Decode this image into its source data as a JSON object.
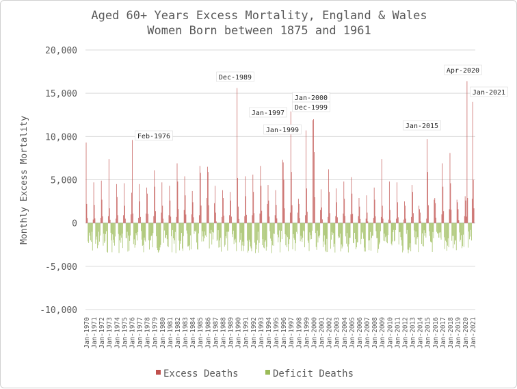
{
  "chart_data": {
    "type": "bar",
    "title": "Aged 60+ Years Excess Mortality, England & Wales",
    "subtitle": "Women Born between 1875 and 1961",
    "ylabel": "Monthly Excess Mortality",
    "xlabel": "",
    "ylim": [
      -10000,
      20000
    ],
    "yticks": [
      -10000,
      -5000,
      0,
      5000,
      10000,
      15000,
      20000
    ],
    "ytick_labels": [
      "-10,000",
      "-5,000",
      "0",
      "5,000",
      "10,000",
      "15,000",
      "20,000"
    ],
    "grid": true,
    "x_start": "Jan-1970",
    "x_end": "Mar-2021",
    "x_tick_labels": [
      "Jan-1970",
      "Jan-1971",
      "Jan-1972",
      "Jan-1973",
      "Jan-1974",
      "Jan-1975",
      "Jan-1976",
      "Jan-1977",
      "Jan-1978",
      "Jan-1979",
      "Jan-1980",
      "Jan-1981",
      "Jan-1982",
      "Jan-1983",
      "Jan-1984",
      "Jan-1985",
      "Jan-1986",
      "Jan-1987",
      "Jan-1988",
      "Jan-1989",
      "Jan-1990",
      "Jan-1991",
      "Jan-1992",
      "Jan-1993",
      "Jan-1994",
      "Jan-1995",
      "Jan-1996",
      "Jan-1997",
      "Jan-1998",
      "Jan-1999",
      "Jan-2000",
      "Jan-2001",
      "Jan-2002",
      "Jan-2003",
      "Jan-2004",
      "Jan-2005",
      "Jan-2006",
      "Jan-2007",
      "Jan-2008",
      "Jan-2009",
      "Jan-2010",
      "Jan-2011",
      "Jan-2012",
      "Jan-2013",
      "Jan-2014",
      "Jan-2015",
      "Jan-2016",
      "Jan-2017",
      "Jan-2018",
      "Jan-2019",
      "Jan-2020",
      "Jan-2021"
    ],
    "legend_position": "bottom",
    "series": [
      {
        "name": "Excess Deaths",
        "color": "#c0504d"
      },
      {
        "name": "Deficit Deaths",
        "color": "#9bbb59"
      }
    ],
    "winter_peaks": [
      {
        "year": 1970,
        "values": [
          9300,
          2200,
          400
        ]
      },
      {
        "year": 1971,
        "values": [
          4700,
          2100,
          600
        ]
      },
      {
        "year": 1972,
        "values": [
          4900,
          2700,
          800
        ]
      },
      {
        "year": 1973,
        "values": [
          7400,
          1700,
          500
        ]
      },
      {
        "year": 1974,
        "values": [
          4500,
          3000,
          900
        ]
      },
      {
        "year": 1975,
        "values": [
          4600,
          2000,
          1000
        ]
      },
      {
        "year": 1976,
        "values": [
          9600,
          3500,
          600
        ]
      },
      {
        "year": 1977,
        "values": [
          4500,
          2500,
          1100
        ]
      },
      {
        "year": 1978,
        "values": [
          4100,
          3400,
          800
        ]
      },
      {
        "year": 1979,
        "values": [
          6100,
          4200,
          1200
        ]
      },
      {
        "year": 1980,
        "values": [
          4700,
          2000,
          900
        ]
      },
      {
        "year": 1981,
        "values": [
          4300,
          2600,
          700
        ]
      },
      {
        "year": 1982,
        "values": [
          6900,
          4800,
          1500
        ]
      },
      {
        "year": 1983,
        "values": [
          5400,
          3200,
          1000
        ]
      },
      {
        "year": 1984,
        "values": [
          3700,
          2400,
          900
        ]
      },
      {
        "year": 1985,
        "values": [
          6600,
          5800,
          2900
        ]
      },
      {
        "year": 1986,
        "values": [
          6500,
          5900,
          2300
        ]
      },
      {
        "year": 1987,
        "values": [
          4300,
          1200,
          700
        ]
      },
      {
        "year": 1988,
        "values": [
          3800,
          2900,
          900
        ]
      },
      {
        "year": 1989,
        "values": [
          3600,
          2600,
          15600
        ]
      },
      {
        "year": 1990,
        "values": [
          5200,
          1900,
          800
        ]
      },
      {
        "year": 1991,
        "values": [
          5400,
          3100,
          900
        ]
      },
      {
        "year": 1992,
        "values": [
          5600,
          3600,
          1100
        ]
      },
      {
        "year": 1993,
        "values": [
          6600,
          4300,
          2200
        ]
      },
      {
        "year": 1994,
        "values": [
          4400,
          2600,
          900
        ]
      },
      {
        "year": 1995,
        "values": [
          3800,
          2100,
          7300
        ]
      },
      {
        "year": 1996,
        "values": [
          7000,
          5000,
          1200
        ]
      },
      {
        "year": 1997,
        "values": [
          12900,
          5900,
          1200
        ]
      },
      {
        "year": 1998,
        "values": [
          2800,
          2200,
          900
        ]
      },
      {
        "year": 1999,
        "values": [
          10700,
          4000,
          11900
        ]
      },
      {
        "year": 2000,
        "values": [
          12000,
          8200,
          1500
        ]
      },
      {
        "year": 2001,
        "values": [
          3900,
          1800,
          700
        ]
      },
      {
        "year": 2002,
        "values": [
          6200,
          3600,
          800
        ]
      },
      {
        "year": 2003,
        "values": [
          4000,
          2400,
          1100
        ]
      },
      {
        "year": 2004,
        "values": [
          4800,
          2800,
          1000
        ]
      },
      {
        "year": 2005,
        "values": [
          5300,
          3400,
          800
        ]
      },
      {
        "year": 2006,
        "values": [
          2900,
          1900,
          500
        ]
      },
      {
        "year": 2007,
        "values": [
          3200,
          1200,
          600
        ]
      },
      {
        "year": 2008,
        "values": [
          4100,
          2700,
          700
        ]
      },
      {
        "year": 2009,
        "values": [
          7400,
          2000,
          400
        ]
      },
      {
        "year": 2010,
        "values": [
          4800,
          1500,
          500
        ]
      },
      {
        "year": 2011,
        "values": [
          4700,
          2400,
          400
        ]
      },
      {
        "year": 2012,
        "values": [
          2500,
          2000,
          700
        ]
      },
      {
        "year": 2013,
        "values": [
          4400,
          3600,
          2000
        ]
      },
      {
        "year": 2014,
        "values": [
          1600,
          1200,
          500
        ]
      },
      {
        "year": 2015,
        "values": [
          9700,
          5900,
          2700
        ]
      },
      {
        "year": 2016,
        "values": [
          2900,
          2300,
          1000
        ]
      },
      {
        "year": 2017,
        "values": [
          6900,
          4200,
          1600
        ]
      },
      {
        "year": 2018,
        "values": [
          8100,
          4600,
          2700
        ]
      },
      {
        "year": 2019,
        "values": [
          2400,
          1600,
          800
        ]
      },
      {
        "year": 2020,
        "values": [
          3100,
          2600,
          2800
        ]
      },
      {
        "year": 2021,
        "values": [
          14000,
          5000,
          2300
        ]
      }
    ],
    "spring_2020_peak": [
      {
        "month": "Apr-2020",
        "value": 16400
      },
      {
        "month": "May-2020",
        "value": 2900
      }
    ],
    "annotations": [
      {
        "label": "Feb-1976",
        "value": 9600
      },
      {
        "label": "Dec-1989",
        "value": 15600
      },
      {
        "label": "Jan-1997",
        "value": 12900
      },
      {
        "label": "Jan-1999",
        "value": 10700
      },
      {
        "label": "Jan-2000",
        "value": 12000
      },
      {
        "label": "Dec-1999",
        "value": 11900
      },
      {
        "label": "Jan-2015",
        "value": 9700
      },
      {
        "label": "Apr-2020",
        "value": 16400
      },
      {
        "label": "Jan-2021",
        "value": 14000
      }
    ]
  }
}
